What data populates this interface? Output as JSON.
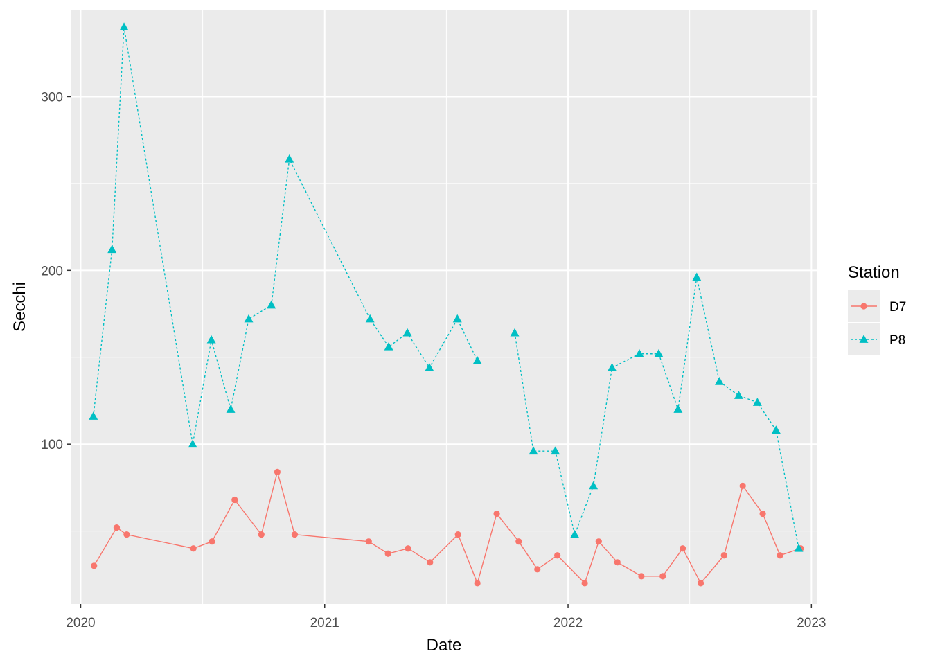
{
  "chart_data": {
    "type": "line",
    "xlabel": "Date",
    "ylabel": "Secchi",
    "x_ticks": [
      "2020",
      "2021",
      "2022",
      "2023"
    ],
    "y_ticks": [
      "100",
      "200",
      "300"
    ],
    "ylim": [
      8,
      350
    ],
    "xlim": [
      "2019-12-18",
      "2023-01-10"
    ],
    "grid": true,
    "legend": {
      "title": "Station",
      "position": "right"
    },
    "series": [
      {
        "name": "D7",
        "color": "#F8766D",
        "marker": "circle",
        "line": "solid",
        "x": [
          "2020-01-21",
          "2020-02-24",
          "2020-03-10",
          "2020-06-18",
          "2020-07-16",
          "2020-08-19",
          "2020-09-28",
          "2020-10-22",
          "2020-11-17",
          "2021-03-08",
          "2021-04-06",
          "2021-05-06",
          "2021-06-08",
          "2021-07-20",
          "2021-08-18",
          "2021-09-16",
          "2021-10-19",
          "2021-11-16",
          "2021-12-16",
          "2022-01-26",
          "2022-02-16",
          "2022-03-16",
          "2022-04-21",
          "2022-05-23",
          "2022-06-22",
          "2022-07-19",
          "2022-08-23",
          "2022-09-20",
          "2022-10-20",
          "2022-11-15",
          "2022-12-16"
        ],
        "y": [
          30,
          52,
          48,
          40,
          44,
          68,
          48,
          84,
          48,
          44,
          37,
          40,
          32,
          48,
          20,
          60,
          44,
          28,
          36,
          20,
          44,
          32,
          24,
          24,
          40,
          20,
          36,
          76,
          60,
          36,
          40
        ]
      },
      {
        "name": "P8",
        "color": "#00BFC4",
        "marker": "triangle",
        "line": "dashed",
        "x": [
          "2020-01-20",
          "2020-02-17",
          "2020-03-06",
          "2020-06-17",
          "2020-07-15",
          "2020-08-13",
          "2020-09-09",
          "2020-10-13",
          "2020-11-09",
          "2021-03-10",
          "2021-04-07",
          "2021-05-05",
          "2021-06-07",
          "2021-07-19",
          "2021-08-18",
          "2021-10-13",
          "2021-11-10",
          "2021-12-13",
          "2022-01-11",
          "2022-02-08",
          "2022-03-08",
          "2022-04-18",
          "2022-05-17",
          "2022-06-15",
          "2022-07-13",
          "2022-08-16",
          "2022-09-14",
          "2022-10-12",
          "2022-11-09",
          "2022-12-13"
        ],
        "y": [
          116,
          212,
          340,
          100,
          160,
          120,
          172,
          180,
          264,
          172,
          156,
          164,
          144,
          172,
          148,
          164,
          96,
          96,
          48,
          76,
          144,
          152,
          152,
          120,
          196,
          136,
          128,
          124,
          108,
          40
        ],
        "breaks_before": [
          15
        ]
      }
    ]
  }
}
